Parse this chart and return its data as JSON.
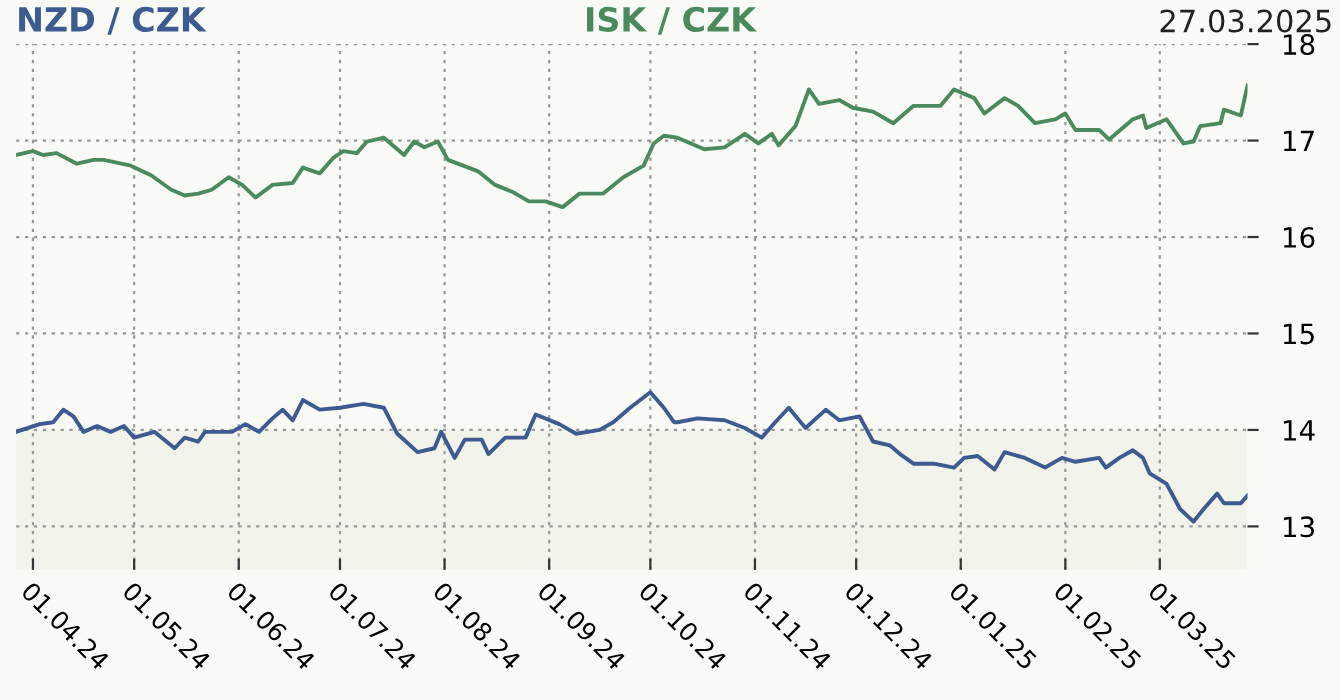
{
  "chart_data": {
    "type": "line",
    "annotations": [
      "27.03.2025"
    ],
    "legend": "top",
    "grid": true,
    "line_style": "solid",
    "xlim": [
      "2024-03-27",
      "2025-03-27"
    ],
    "ylim": [
      12.55,
      18
    ],
    "yticks": [
      13,
      14,
      15,
      16,
      17,
      18
    ],
    "xticks": [
      {
        "value": "2024-04-01",
        "label": "01.04.24"
      },
      {
        "value": "2024-05-01",
        "label": "01.05.24"
      },
      {
        "value": "2024-06-01",
        "label": "01.06.24"
      },
      {
        "value": "2024-07-01",
        "label": "01.07.24"
      },
      {
        "value": "2024-08-01",
        "label": "01.08.24"
      },
      {
        "value": "2024-09-01",
        "label": "01.09.24"
      },
      {
        "value": "2024-10-01",
        "label": "01.10.24"
      },
      {
        "value": "2024-11-01",
        "label": "01.11.24"
      },
      {
        "value": "2024-12-01",
        "label": "01.12.24"
      },
      {
        "value": "2025-01-01",
        "label": "01.01.25"
      },
      {
        "value": "2025-02-01",
        "label": "01.02.25"
      },
      {
        "value": "2025-03-01",
        "label": "01.03.25"
      }
    ],
    "bands": [
      {
        "axis": "y",
        "from": 12.55,
        "to": 14.0,
        "color": "#f2f3eb"
      }
    ],
    "series": [
      {
        "name": "NZD / CZK",
        "color": "#3d5a91",
        "x": [
          "2024-03-27",
          "2024-04-03",
          "2024-04-07",
          "2024-04-10",
          "2024-04-13",
          "2024-04-16",
          "2024-04-20",
          "2024-04-24",
          "2024-04-28",
          "2024-05-01",
          "2024-05-07",
          "2024-05-13",
          "2024-05-16",
          "2024-05-20",
          "2024-05-22",
          "2024-05-30",
          "2024-06-03",
          "2024-06-07",
          "2024-06-11",
          "2024-06-14",
          "2024-06-17",
          "2024-06-20",
          "2024-06-25",
          "2024-07-01",
          "2024-07-08",
          "2024-07-14",
          "2024-07-18",
          "2024-07-24",
          "2024-07-29",
          "2024-07-31",
          "2024-08-04",
          "2024-08-07",
          "2024-08-12",
          "2024-08-14",
          "2024-08-19",
          "2024-08-25",
          "2024-08-28",
          "2024-09-04",
          "2024-09-09",
          "2024-09-16",
          "2024-09-20",
          "2024-09-25",
          "2024-10-01",
          "2024-10-05",
          "2024-10-08",
          "2024-10-09",
          "2024-10-15",
          "2024-10-23",
          "2024-10-29",
          "2024-11-03",
          "2024-11-07",
          "2024-11-11",
          "2024-11-16",
          "2024-11-22",
          "2024-11-26",
          "2024-12-02",
          "2024-12-06",
          "2024-12-11",
          "2024-12-14",
          "2024-12-18",
          "2024-12-24",
          "2024-12-30",
          "2025-01-02",
          "2025-01-06",
          "2025-01-11",
          "2025-01-14",
          "2025-01-20",
          "2025-01-26",
          "2025-01-31",
          "2025-02-04",
          "2025-02-11",
          "2025-02-13",
          "2025-02-17",
          "2025-02-21",
          "2025-02-24",
          "2025-02-26",
          "2025-03-03",
          "2025-03-07",
          "2025-03-11",
          "2025-03-14",
          "2025-03-18",
          "2025-03-20",
          "2025-03-25",
          "2025-03-27"
        ],
        "values": [
          13.98,
          14.06,
          14.08,
          14.21,
          14.14,
          13.98,
          14.04,
          13.98,
          14.04,
          13.92,
          13.98,
          13.81,
          13.92,
          13.88,
          13.98,
          13.98,
          14.06,
          13.98,
          14.12,
          14.21,
          14.1,
          14.31,
          14.21,
          14.23,
          14.27,
          14.23,
          13.96,
          13.77,
          13.81,
          13.98,
          13.71,
          13.9,
          13.9,
          13.75,
          13.92,
          13.92,
          14.16,
          14.06,
          13.96,
          14.0,
          14.08,
          14.23,
          14.39,
          14.23,
          14.08,
          14.08,
          14.12,
          14.1,
          14.02,
          13.92,
          14.08,
          14.23,
          14.02,
          14.21,
          14.1,
          14.14,
          13.88,
          13.84,
          13.75,
          13.65,
          13.65,
          13.61,
          13.71,
          13.73,
          13.59,
          13.77,
          13.71,
          13.61,
          13.71,
          13.67,
          13.71,
          13.61,
          13.71,
          13.79,
          13.71,
          13.55,
          13.44,
          13.18,
          13.05,
          13.18,
          13.34,
          13.24,
          13.24,
          13.32
        ]
      },
      {
        "name": "ISK / CZK",
        "color": "#4a8a5e",
        "x": [
          "2024-03-27",
          "2024-04-01",
          "2024-04-04",
          "2024-04-08",
          "2024-04-14",
          "2024-04-19",
          "2024-04-22",
          "2024-04-30",
          "2024-05-06",
          "2024-05-12",
          "2024-05-16",
          "2024-05-20",
          "2024-05-24",
          "2024-05-29",
          "2024-06-02",
          "2024-06-06",
          "2024-06-11",
          "2024-06-17",
          "2024-06-20",
          "2024-06-25",
          "2024-06-29",
          "2024-07-02",
          "2024-07-06",
          "2024-07-09",
          "2024-07-14",
          "2024-07-20",
          "2024-07-23",
          "2024-07-26",
          "2024-07-30",
          "2024-08-02",
          "2024-08-11",
          "2024-08-16",
          "2024-08-21",
          "2024-08-26",
          "2024-08-31",
          "2024-09-05",
          "2024-09-10",
          "2024-09-17",
          "2024-09-23",
          "2024-09-29",
          "2024-10-02",
          "2024-10-05",
          "2024-10-09",
          "2024-10-17",
          "2024-10-23",
          "2024-10-29",
          "2024-11-02",
          "2024-11-06",
          "2024-11-08",
          "2024-11-13",
          "2024-11-17",
          "2024-11-20",
          "2024-11-26",
          "2024-11-30",
          "2024-12-06",
          "2024-12-12",
          "2024-12-18",
          "2024-12-26",
          "2024-12-30",
          "2025-01-05",
          "2025-01-08",
          "2025-01-14",
          "2025-01-18",
          "2025-01-23",
          "2025-01-29",
          "2025-02-01",
          "2025-02-04",
          "2025-02-11",
          "2025-02-14",
          "2025-02-21",
          "2025-02-24",
          "2025-02-25",
          "2025-03-03",
          "2025-03-08",
          "2025-03-11",
          "2025-03-13",
          "2025-03-19",
          "2025-03-20",
          "2025-03-25",
          "2025-03-27"
        ],
        "values": [
          16.85,
          16.89,
          16.85,
          16.87,
          16.76,
          16.8,
          16.8,
          16.74,
          16.64,
          16.49,
          16.43,
          16.45,
          16.49,
          16.62,
          16.54,
          16.41,
          16.54,
          16.56,
          16.72,
          16.66,
          16.82,
          16.89,
          16.87,
          16.99,
          17.03,
          16.85,
          16.99,
          16.93,
          16.99,
          16.8,
          16.68,
          16.54,
          16.47,
          16.37,
          16.37,
          16.31,
          16.45,
          16.45,
          16.62,
          16.74,
          16.97,
          17.05,
          17.03,
          16.91,
          16.93,
          17.07,
          16.97,
          17.07,
          16.95,
          17.15,
          17.53,
          17.38,
          17.42,
          17.34,
          17.3,
          17.18,
          17.36,
          17.36,
          17.53,
          17.44,
          17.28,
          17.44,
          17.36,
          17.18,
          17.22,
          17.28,
          17.11,
          17.11,
          17.01,
          17.22,
          17.26,
          17.13,
          17.22,
          16.97,
          16.99,
          17.15,
          17.18,
          17.32,
          17.26,
          17.57
        ]
      }
    ]
  }
}
